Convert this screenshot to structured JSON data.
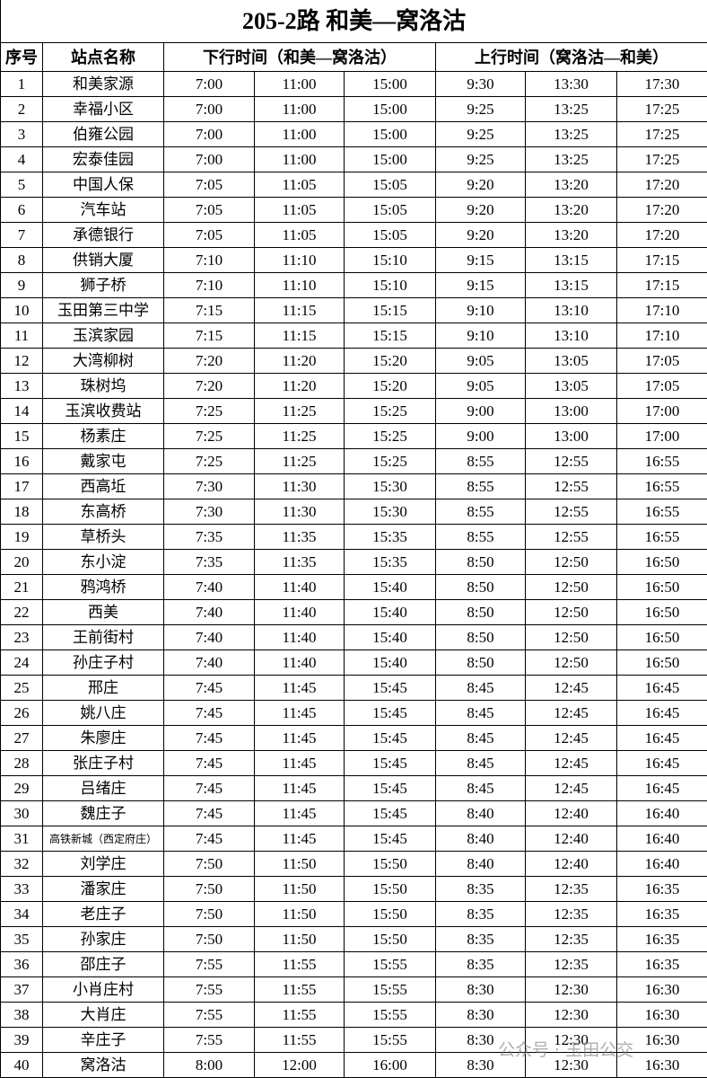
{
  "title": "205-2路  和美—窝洛沽",
  "table": {
    "header": [
      "序号",
      "站点名称",
      "下行时间（和美—窝洛沽）",
      "上行时间（窝洛沽—和美）"
    ],
    "rows": [
      [
        "1",
        "和美家源",
        "7:00",
        "11:00",
        "15:00",
        "9:30",
        "13:30",
        "17:30"
      ],
      [
        "2",
        "幸福小区",
        "7:00",
        "11:00",
        "15:00",
        "9:25",
        "13:25",
        "17:25"
      ],
      [
        "3",
        "伯雍公园",
        "7:00",
        "11:00",
        "15:00",
        "9:25",
        "13:25",
        "17:25"
      ],
      [
        "4",
        "宏泰佳园",
        "7:00",
        "11:00",
        "15:00",
        "9:25",
        "13:25",
        "17:25"
      ],
      [
        "5",
        "中国人保",
        "7:05",
        "11:05",
        "15:05",
        "9:20",
        "13:20",
        "17:20"
      ],
      [
        "6",
        "汽车站",
        "7:05",
        "11:05",
        "15:05",
        "9:20",
        "13:20",
        "17:20"
      ],
      [
        "7",
        "承德银行",
        "7:05",
        "11:05",
        "15:05",
        "9:20",
        "13:20",
        "17:20"
      ],
      [
        "8",
        "供销大厦",
        "7:10",
        "11:10",
        "15:10",
        "9:15",
        "13:15",
        "17:15"
      ],
      [
        "9",
        "狮子桥",
        "7:10",
        "11:10",
        "15:10",
        "9:15",
        "13:15",
        "17:15"
      ],
      [
        "10",
        "玉田第三中学",
        "7:15",
        "11:15",
        "15:15",
        "9:10",
        "13:10",
        "17:10"
      ],
      [
        "11",
        "玉滨家园",
        "7:15",
        "11:15",
        "15:15",
        "9:10",
        "13:10",
        "17:10"
      ],
      [
        "12",
        "大湾柳树",
        "7:20",
        "11:20",
        "15:20",
        "9:05",
        "13:05",
        "17:05"
      ],
      [
        "13",
        "珠树坞",
        "7:20",
        "11:20",
        "15:20",
        "9:05",
        "13:05",
        "17:05"
      ],
      [
        "14",
        "玉滨收费站",
        "7:25",
        "11:25",
        "15:25",
        "9:00",
        "13:00",
        "17:00"
      ],
      [
        "15",
        "杨素庄",
        "7:25",
        "11:25",
        "15:25",
        "9:00",
        "13:00",
        "17:00"
      ],
      [
        "16",
        "戴家屯",
        "7:25",
        "11:25",
        "15:25",
        "8:55",
        "12:55",
        "16:55"
      ],
      [
        "17",
        "西高坵",
        "7:30",
        "11:30",
        "15:30",
        "8:55",
        "12:55",
        "16:55"
      ],
      [
        "18",
        "东高桥",
        "7:30",
        "11:30",
        "15:30",
        "8:55",
        "12:55",
        "16:55"
      ],
      [
        "19",
        "草桥头",
        "7:35",
        "11:35",
        "15:35",
        "8:55",
        "12:55",
        "16:55"
      ],
      [
        "20",
        "东小淀",
        "7:35",
        "11:35",
        "15:35",
        "8:50",
        "12:50",
        "16:50"
      ],
      [
        "21",
        "鸦鸿桥",
        "7:40",
        "11:40",
        "15:40",
        "8:50",
        "12:50",
        "16:50"
      ],
      [
        "22",
        "西美",
        "7:40",
        "11:40",
        "15:40",
        "8:50",
        "12:50",
        "16:50"
      ],
      [
        "23",
        "王前街村",
        "7:40",
        "11:40",
        "15:40",
        "8:50",
        "12:50",
        "16:50"
      ],
      [
        "24",
        "孙庄子村",
        "7:40",
        "11:40",
        "15:40",
        "8:50",
        "12:50",
        "16:50"
      ],
      [
        "25",
        "邢庄",
        "7:45",
        "11:45",
        "15:45",
        "8:45",
        "12:45",
        "16:45"
      ],
      [
        "26",
        "姚八庄",
        "7:45",
        "11:45",
        "15:45",
        "8:45",
        "12:45",
        "16:45"
      ],
      [
        "27",
        "朱廖庄",
        "7:45",
        "11:45",
        "15:45",
        "8:45",
        "12:45",
        "16:45"
      ],
      [
        "28",
        "张庄子村",
        "7:45",
        "11:45",
        "15:45",
        "8:45",
        "12:45",
        "16:45"
      ],
      [
        "29",
        "吕绪庄",
        "7:45",
        "11:45",
        "15:45",
        "8:45",
        "12:45",
        "16:45"
      ],
      [
        "30",
        "魏庄子",
        "7:45",
        "11:45",
        "15:45",
        "8:40",
        "12:40",
        "16:40"
      ],
      [
        "31",
        "高铁新城（西定府庄）",
        "7:45",
        "11:45",
        "15:45",
        "8:40",
        "12:40",
        "16:40"
      ],
      [
        "32",
        "刘学庄",
        "7:50",
        "11:50",
        "15:50",
        "8:40",
        "12:40",
        "16:40"
      ],
      [
        "33",
        "潘家庄",
        "7:50",
        "11:50",
        "15:50",
        "8:35",
        "12:35",
        "16:35"
      ],
      [
        "34",
        "老庄子",
        "7:50",
        "11:50",
        "15:50",
        "8:35",
        "12:35",
        "16:35"
      ],
      [
        "35",
        "孙家庄",
        "7:50",
        "11:50",
        "15:50",
        "8:35",
        "12:35",
        "16:35"
      ],
      [
        "36",
        "邵庄子",
        "7:55",
        "11:55",
        "15:55",
        "8:35",
        "12:35",
        "16:35"
      ],
      [
        "37",
        "小肖庄村",
        "7:55",
        "11:55",
        "15:55",
        "8:30",
        "12:30",
        "16:30"
      ],
      [
        "38",
        "大肖庄",
        "7:55",
        "11:55",
        "15:55",
        "8:30",
        "12:30",
        "16:30"
      ],
      [
        "39",
        "辛庄子",
        "7:55",
        "11:55",
        "15:55",
        "8:30",
        "12:30",
        "16:30"
      ],
      [
        "40",
        "窝洛沽",
        "8:00",
        "12:00",
        "16:00",
        "8:30",
        "12:30",
        "16:30"
      ]
    ]
  },
  "watermark": "公众号 · 玉田公交"
}
